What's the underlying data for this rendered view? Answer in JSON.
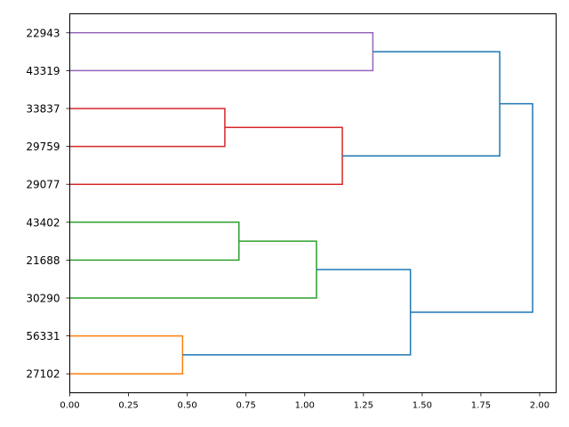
{
  "chart_data": {
    "type": "dendrogram",
    "orientation": "horizontal",
    "xlim": [
      0,
      2.07
    ],
    "x_ticks": [
      "0.00",
      "0.25",
      "0.50",
      "0.75",
      "1.00",
      "1.25",
      "1.50",
      "1.75",
      "2.00"
    ],
    "leaves": [
      "22943",
      "43319",
      "33837",
      "29759",
      "29077",
      "43402",
      "21688",
      "30290",
      "56331",
      "27102"
    ],
    "colors": {
      "above_threshold": "#1f77b4",
      "cluster_orange": "#ff7f0e",
      "cluster_green": "#2ca02c",
      "cluster_red": "#d62728",
      "cluster_purple": "#9467bd"
    },
    "merges": [
      {
        "left": "22943",
        "right": "43319",
        "height": 1.29,
        "color": "#9467bd"
      },
      {
        "left": "33837",
        "right": "29759",
        "height": 0.66,
        "color": "#d62728"
      },
      {
        "left": "33837+29759",
        "right": "29077",
        "height": 1.16,
        "color": "#d62728"
      },
      {
        "left": "43402",
        "right": "21688",
        "height": 0.72,
        "color": "#2ca02c"
      },
      {
        "left": "43402+21688",
        "right": "30290",
        "height": 1.05,
        "color": "#2ca02c"
      },
      {
        "left": "56331",
        "right": "27102",
        "height": 0.48,
        "color": "#ff7f0e"
      },
      {
        "left": "43402+21688+30290",
        "right": "56331+27102",
        "height": 1.45,
        "color": "#1f77b4"
      },
      {
        "left": "22943+43319",
        "right": "33837+29759+29077",
        "height": 1.83,
        "color": "#1f77b4"
      },
      {
        "left": "22943+43319+33837+29759+29077",
        "right": "43402+21688+30290+56331+27102",
        "height": 1.97,
        "color": "#1f77b4"
      }
    ]
  }
}
